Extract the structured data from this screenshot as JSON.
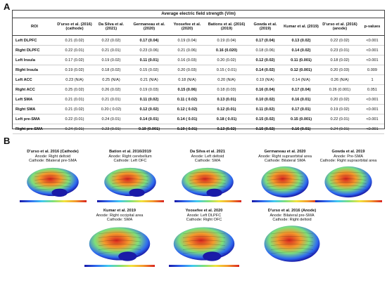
{
  "panels": {
    "a": "A",
    "b": "B"
  },
  "table": {
    "title": "Average electric field strength (V/m)",
    "columns": [
      "ROI",
      "D'urso et al. (2016) (cathode)",
      "Da Silva et al. (2021)",
      "Germaneau et al. (2020)",
      "Yoosefee et al. (2020)",
      "Bations et al. (2016)(2019)",
      "Gowda et al. (2019)",
      "Kumar et al. (2019)",
      "D'urso et al. (2016) (anode)",
      "p-values"
    ],
    "rows": [
      {
        "roi": "Left DLPFC",
        "cells": [
          {
            "v": "0.21  (0.02)",
            "b": false
          },
          {
            "v": "0.22 (0.02)",
            "b": false
          },
          {
            "v": "0.17 (0.04)",
            "b": true
          },
          {
            "v": "0.19 (0.04)",
            "b": false
          },
          {
            "v": "0.19 (0.04)",
            "b": false
          },
          {
            "v": "0.17 (0.04)",
            "b": true
          },
          {
            "v": "0.13 (0.02)",
            "b": true
          },
          {
            "v": "0.22 (0.02)",
            "b": false
          },
          {
            "v": "<0.001",
            "b": false
          }
        ]
      },
      {
        "roi": "Right DLPFC",
        "cells": [
          {
            "v": "0.22 (0.01)",
            "b": false
          },
          {
            "v": "0.21 (0.01)",
            "b": false
          },
          {
            "v": "0.23 (0.06)",
            "b": false
          },
          {
            "v": "0.21 (0.06)",
            "b": false
          },
          {
            "v": "0.16 (0.020)",
            "b": true
          },
          {
            "v": "0.18 (0.06)",
            "b": false
          },
          {
            "v": "0.14 (0.02)",
            "b": true
          },
          {
            "v": "0.23  (0.01)",
            "b": false
          },
          {
            "v": "<0.001",
            "b": false
          }
        ]
      },
      {
        "roi": "Left Insula",
        "cells": [
          {
            "v": "0.17 (0.02)",
            "b": false
          },
          {
            "v": "0.19 (0.02)",
            "b": false
          },
          {
            "v": "0.11 (0.01)",
            "b": true
          },
          {
            "v": "0.16  (0.03)",
            "b": false
          },
          {
            "v": "0.20 (0.02)",
            "b": false
          },
          {
            "v": "0.12 (0.02)",
            "b": true
          },
          {
            "v": "0.11 (0.001)",
            "b": true
          },
          {
            "v": "0.18 (0.02)",
            "b": false
          },
          {
            "v": "<0.001",
            "b": false
          }
        ]
      },
      {
        "roi": "Right Insula",
        "cells": [
          {
            "v": "0.19 (0.02)",
            "b": false
          },
          {
            "v": "0.18 (0.02)",
            "b": false
          },
          {
            "v": "0.15 (0.02)",
            "b": false
          },
          {
            "v": "0.20 (0.03)",
            "b": false
          },
          {
            "v": "0.15  ( 0.01)",
            "b": false
          },
          {
            "v": "0.14 (0.02)",
            "b": true
          },
          {
            "v": "0.12 (0.001)",
            "b": true
          },
          {
            "v": "0.20   (0.03)",
            "b": false
          },
          {
            "v": "0.009",
            "b": false
          }
        ]
      },
      {
        "roi": "Left ACC",
        "cells": [
          {
            "v": "0.23 (N/A)",
            "b": false
          },
          {
            "v": "0.25 (N/A)",
            "b": false
          },
          {
            "v": "0.21 (N/A)",
            "b": false
          },
          {
            "v": "0.18 (N/A)",
            "b": false
          },
          {
            "v": "0.20   (N/A)",
            "b": false
          },
          {
            "v": "0.19 (N/A)",
            "b": false
          },
          {
            "v": "0.14 (N/A)",
            "b": false
          },
          {
            "v": "0.26 (N/A)",
            "b": false
          },
          {
            "v": "1",
            "b": false
          }
        ]
      },
      {
        "roi": "Right ACC",
        "cells": [
          {
            "v": "0.25 (0.02)",
            "b": false
          },
          {
            "v": "0.26 (0.02)",
            "b": false
          },
          {
            "v": "0.19 (0.03)",
            "b": false
          },
          {
            "v": "0.15 (0.06)",
            "b": true
          },
          {
            "v": "0.18 (0.03)",
            "b": false
          },
          {
            "v": "0.16 (0.04)",
            "b": true
          },
          {
            "v": "0.17 (0.04)",
            "b": true
          },
          {
            "v": "0.26 (0.001)",
            "b": false
          },
          {
            "v": "0.051",
            "b": false
          }
        ]
      },
      {
        "roi": "Left SMA",
        "cells": [
          {
            "v": "0.21 (0.01)",
            "b": false
          },
          {
            "v": "0.21 (0.01)",
            "b": false
          },
          {
            "v": "0.11 (0.02)",
            "b": true
          },
          {
            "v": "0.11 ( 0.02)",
            "b": true
          },
          {
            "v": "0.13 (0.01)",
            "b": true
          },
          {
            "v": "0.10 (0.02)",
            "b": true
          },
          {
            "v": "0.16 (0.01)",
            "b": true
          },
          {
            "v": "0.20 (0.02)",
            "b": false
          },
          {
            "v": "<0.001",
            "b": false
          }
        ]
      },
      {
        "roi": "Right SMA",
        "cells": [
          {
            "v": "0.21 (0.02)",
            "b": false
          },
          {
            "v": "0.20 ( 0.02)",
            "b": false
          },
          {
            "v": "0.12 (0.02)",
            "b": true
          },
          {
            "v": "0.12 ( 0.02)",
            "b": true
          },
          {
            "v": "0.12 (0.01)",
            "b": true
          },
          {
            "v": "0.11 (0.02)",
            "b": true
          },
          {
            "v": "0.17 (0.01)",
            "b": true
          },
          {
            "v": "0.19 (0.02)",
            "b": false
          },
          {
            "v": "<0.001",
            "b": false
          }
        ]
      },
      {
        "roi": "Left pre-SMA",
        "cells": [
          {
            "v": "0.22 (0.01)",
            "b": false
          },
          {
            "v": "0.24 (0.01)",
            "b": false
          },
          {
            "v": "0.14   (0.01)",
            "b": true
          },
          {
            "v": "0.14 ( 0.01)",
            "b": true
          },
          {
            "v": "0.18 ( 0.01)",
            "b": true
          },
          {
            "v": "0.15 (0.02)",
            "b": true
          },
          {
            "v": "0.15 (0.001)",
            "b": true
          },
          {
            "v": "0.22 (0.01)",
            "b": false
          },
          {
            "v": "<0.001",
            "b": false
          }
        ]
      },
      {
        "roi": "Right pre-SMA",
        "cells": [
          {
            "v": "0.24 (0.01)",
            "b": false
          },
          {
            "v": "0.23 (0.01)",
            "b": false
          },
          {
            "v": "0.19 (0.001)",
            "b": true
          },
          {
            "v": "0.19 ( 0.01)",
            "b": true
          },
          {
            "v": "0.13 (0.02)",
            "b": true
          },
          {
            "v": "0.15 (0.02)",
            "b": true
          },
          {
            "v": "0.16 (0.01)",
            "b": true
          },
          {
            "v": "0.24 (0.01)",
            "b": false
          },
          {
            "v": "<0.001",
            "b": false
          }
        ]
      }
    ]
  },
  "tiles": [
    {
      "study": "D'urso et al. 2016 (Cathode)",
      "anode": "Anode: Right deltoid",
      "cathode": "Cathode: Bilateral pre-SMA",
      "view": "lateral"
    },
    {
      "study": "Bation et al. 2016/2019",
      "anode": "Anode: Right cerebellum",
      "cathode": "Cathode: Left OFC",
      "view": "lateral"
    },
    {
      "study": "Da Silva et al. 2021",
      "anode": "Anode: Left deltoid",
      "cathode": "Cathode: SMA",
      "view": "lateral"
    },
    {
      "study": "Germaneau et al. 2020",
      "anode": "Anode: Right supraorbital area",
      "cathode": "Cathode: Bilateral SMA",
      "view": "top"
    },
    {
      "study": "Gowda et al. 2019",
      "anode": "Anode: Pre-SMA",
      "cathode": "Cathode: Right supraorbital area",
      "view": "top"
    },
    {
      "study": "Kumar et al. 2019",
      "anode": "Anode: Right occipital area",
      "cathode": "Cathode: SMA",
      "view": "lateral"
    },
    {
      "study": "Yoosefee et al. 2020",
      "anode": "Anode: Left DLPFC",
      "cathode": "Cathode: Right OFC",
      "view": "lateral"
    },
    {
      "study": "D'urso et al. 2016 (Anode)",
      "anode": "Anode: Bilateral pre-SMA",
      "cathode": "Cathode: Right deltoid",
      "view": "top"
    }
  ],
  "colors": {
    "low": "#1a1aa8",
    "mid": "#7ee07a",
    "high": "#d9241f"
  }
}
